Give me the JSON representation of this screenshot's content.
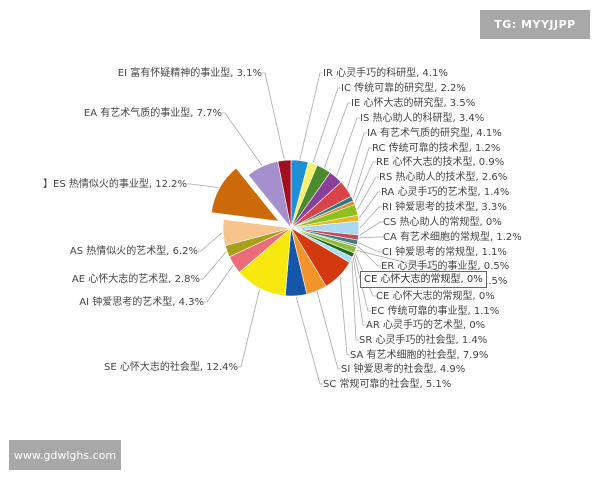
{
  "watermark_top": "TG: MYYJJPP",
  "watermark_bottom": "www.gdwlghs.com",
  "tooltip": "CE 心怀大志的常规型, 0%",
  "chart_data": {
    "type": "pie",
    "start": "top",
    "direction": "clockwise",
    "exploded": [
      "ES 热情似火的事业型"
    ],
    "slices": [
      {
        "label": "IR 心灵手巧的科研型",
        "value": 4.1,
        "text": "IR 心灵手巧的科研型, 4.1%",
        "color": "#1f8fd6"
      },
      {
        "label": "IC 传统可靠的研究型",
        "value": 2.2,
        "text": "IC 传统可靠的研究型, 2.2%",
        "color": "#f4f16a"
      },
      {
        "label": "IE 心怀大志的研究型",
        "value": 3.5,
        "text": "IE 心怀大志的研究型, 3.5%",
        "color": "#4c8a2e"
      },
      {
        "label": "IS 热心助人的科研型",
        "value": 3.4,
        "text": "IS 热心助人的科研型, 3.4%",
        "color": "#8a3f9a"
      },
      {
        "label": "IA 有艺术气质的研究型",
        "value": 4.1,
        "text": "IA 有艺术气质的研究型, 4.1%",
        "color": "#d9434a"
      },
      {
        "label": "RC 传统可靠的技术型",
        "value": 1.2,
        "text": "RC 传统可靠的技术型, 1.2%",
        "color": "#2a7a7a"
      },
      {
        "label": "RE 心怀大志的技术型",
        "value": 0.9,
        "text": "RE 心怀大志的技术型, 0.9%",
        "color": "#e58a2a"
      },
      {
        "label": "RS 热心助人的技术型",
        "value": 2.6,
        "text": "RS 热心助人的技术型, 2.6%",
        "color": "#8cc21f"
      },
      {
        "label": "RA 心灵手巧的艺术型",
        "value": 1.4,
        "text": "RA 心灵手巧的艺术型, 1.4%",
        "color": "#e8b820"
      },
      {
        "label": "RI 钟爱思考的技术型",
        "value": 3.3,
        "text": "RI 钟爱思考的技术型, 3.3%",
        "color": "#a9d8f0"
      },
      {
        "label": "CS 热心助人的常规型",
        "value": 0,
        "text": "CS 热心助人的常规型, 0%",
        "color": "#cccccc"
      },
      {
        "label": "CA 有艺术细胞的常规型",
        "value": 1.2,
        "text": "CA 有艺术细胞的常规型, 1.2%",
        "color": "#c9485b"
      },
      {
        "label": "CI 钟爱思考的常规型",
        "value": 1.1,
        "text": "CI 钟爱思考的常规型, 1.1%",
        "color": "#3d7f7f"
      },
      {
        "label": "ER 心灵手巧的事业型",
        "value": 0.5,
        "text": "ER 心灵手巧的事业型, 0.5%",
        "color": "#a0a0a0"
      },
      {
        "label": "",
        "value": 1.5,
        "text": "1.5%",
        "color": "#8fbf3a"
      },
      {
        "label": "CE 心怀大志的常规型",
        "value": 0,
        "text": "CE 心怀大志的常规型, 0%",
        "color": "#999999"
      },
      {
        "label": "EC 传统可靠的事业型",
        "value": 1.1,
        "text": "EC 传统可靠的事业型, 1.1%",
        "color": "#1e6b1e"
      },
      {
        "label": "AR 心灵手巧的艺术型",
        "value": 0,
        "text": "AR 心灵手巧的艺术型, 0%",
        "color": "#bbbbbb"
      },
      {
        "label": "SR 心灵手巧的社会型",
        "value": 1.4,
        "text": "SR 心灵手巧的社会型, 1.4%",
        "color": "#a8dcef"
      },
      {
        "label": "SA 有艺术细胞的社会型",
        "value": 7.9,
        "text": "SA 有艺术细胞的社会型, 7.9%",
        "color": "#d3380e"
      },
      {
        "label": "SI 钟爱思考的社会型",
        "value": 4.9,
        "text": "SI 钟爱思考的社会型, 4.9%",
        "color": "#f2942a"
      },
      {
        "label": "SC 常规可靠的社会型",
        "value": 5.1,
        "text": "SC 常规可靠的社会型, 5.1%",
        "color": "#1656a8"
      },
      {
        "label": "SE 心怀大志的社会型",
        "value": 12.4,
        "text": "SE 心怀大志的社会型, 12.4%",
        "color": "#f7e90f"
      },
      {
        "label": "AI 钟爱思考的艺术型",
        "value": 4.3,
        "text": "AI 钟爱思考的艺术型, 4.3%",
        "color": "#ee6b7a"
      },
      {
        "label": "AE 心怀大志的艺术型",
        "value": 2.8,
        "text": "AE 心怀大志的艺术型, 2.8%",
        "color": "#a8a018"
      },
      {
        "label": "AS 热情似火的艺术型",
        "value": 6.2,
        "text": "AS 热情似火的艺术型, 6.2%",
        "color": "#f7c48e"
      },
      {
        "label": "ES 热情似火的事业型",
        "value": 12.2,
        "text": "】ES 热情似火的事业型, 12.2%",
        "color": "#cc6a0a"
      },
      {
        "label": "EA 有艺术气质的事业型",
        "value": 7.7,
        "text": "EA 有艺术气质的事业型, 7.7%",
        "color": "#a58fcc"
      },
      {
        "label": "EI 富有怀疑精神的事业型",
        "value": 3.1,
        "text": "EI 富有怀疑精神的事业型, 3.1%",
        "color": "#a01020"
      }
    ]
  }
}
